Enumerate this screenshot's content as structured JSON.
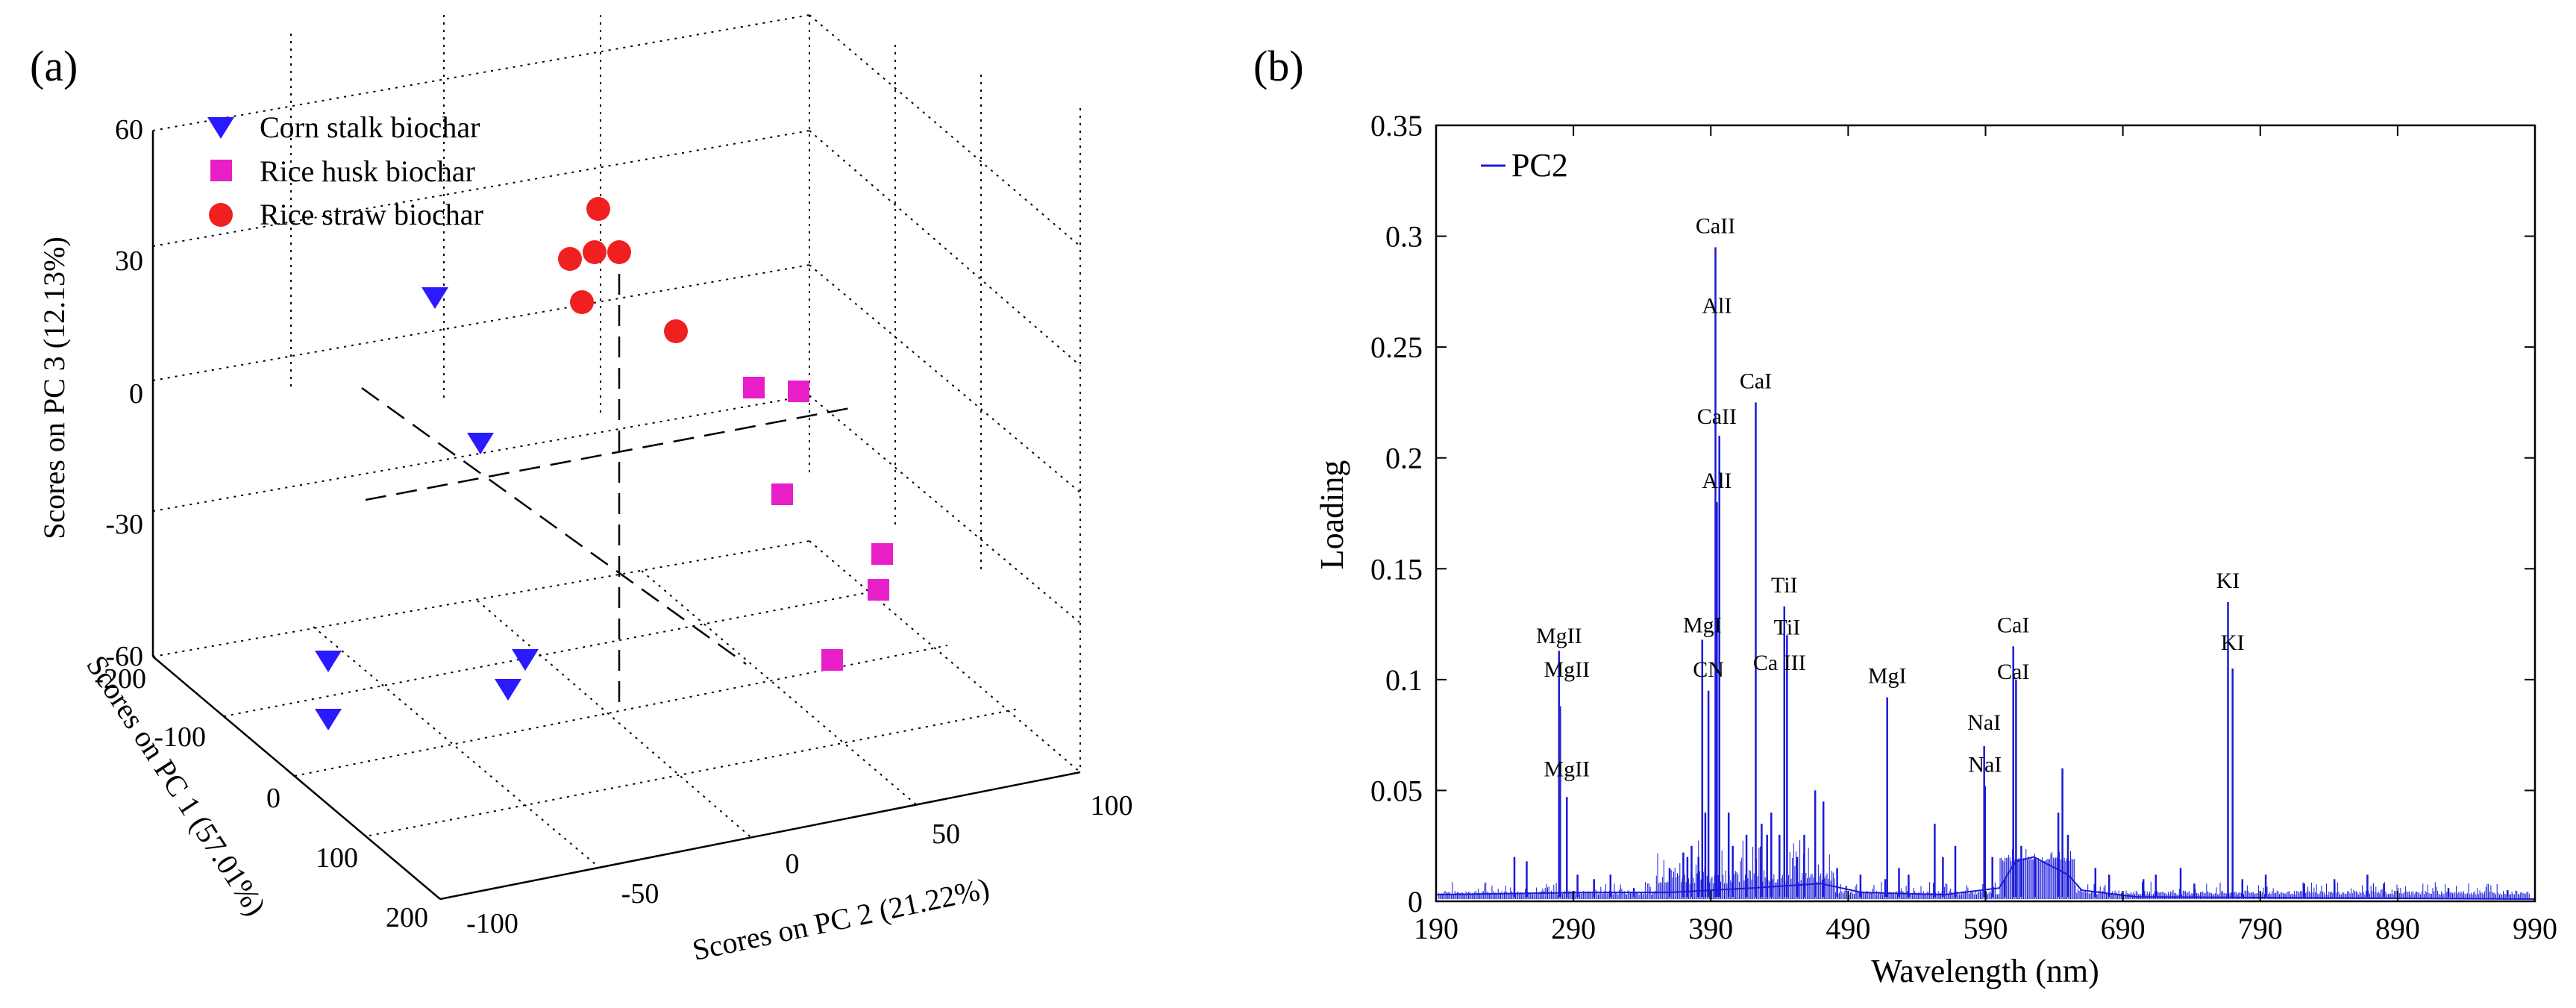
{
  "colors": {
    "axis": "#000000",
    "grid": "#000000",
    "series_line": "#1a1ad9",
    "corn": "#2a1aff",
    "husk": "#e81fc8",
    "straw": "#f02020"
  },
  "panel_a": {
    "label": "(a)",
    "legend": [
      "Corn stalk biochar",
      "Rice husk biochar",
      "Rice straw biochar"
    ],
    "axes": {
      "z_label": "Scores on PC 3 (12.13%)",
      "x_label": "Scores on PC 1 (57.01%)",
      "y_label": "Scores on PC 2 (21.22%)"
    }
  },
  "panel_b": {
    "label": "(b)",
    "legend": "PC2",
    "ylabel": "Loading",
    "xlabel": "Wavelength (nm)"
  },
  "chart_data": [
    {
      "type": "scatter",
      "title": "(a)",
      "dimensions": 3,
      "xlabel": "Scores on PC 1 (57.01%)",
      "ylabel": "Scores on PC 2 (21.22%)",
      "zlabel": "Scores on PC 3 (12.13%)",
      "xlim": [
        -200,
        200
      ],
      "ylim": [
        -100,
        100
      ],
      "zlim": [
        -60,
        60
      ],
      "x_ticks": [
        "-200",
        "-100",
        "0",
        "100",
        "200"
      ],
      "y_ticks": [
        "-100",
        "-50",
        "0",
        "50",
        "100"
      ],
      "z_ticks": [
        "-60",
        "-30",
        "0",
        "30",
        "60"
      ],
      "grid": true,
      "legend_position": "top-left",
      "series": [
        {
          "name": "Corn stalk biochar",
          "marker": "triangle-down",
          "color": "#2a1aff",
          "points": [
            {
              "pc1": -180,
              "pc2": -70,
              "pc3": 45
            },
            {
              "pc1": -100,
              "pc2": -30,
              "pc3": 5
            },
            {
              "pc1": 120,
              "pc2": -95,
              "pc3": 8
            },
            {
              "pc1": 170,
              "pc2": -90,
              "pc3": -8
            },
            {
              "pc1": 60,
              "pc2": -40,
              "pc3": 10
            },
            {
              "pc1": 90,
              "pc2": -45,
              "pc3": 2
            }
          ]
        },
        {
          "name": "Rice husk biochar",
          "marker": "square",
          "color": "#e81fc8",
          "points": [
            {
              "pc1": -20,
              "pc2": 30,
              "pc3": 30
            },
            {
              "pc1": 0,
              "pc2": 50,
              "pc3": 20
            },
            {
              "pc1": 30,
              "pc2": 40,
              "pc3": 0
            },
            {
              "pc1": 60,
              "pc2": 80,
              "pc3": -10
            },
            {
              "pc1": 80,
              "pc2": 70,
              "pc3": -20
            },
            {
              "pc1": 140,
              "pc2": 60,
              "pc3": -25
            }
          ]
        },
        {
          "name": "Rice straw biochar",
          "marker": "circle",
          "color": "#f02020",
          "points": [
            {
              "pc1": -120,
              "pc2": 10,
              "pc3": 50
            },
            {
              "pc1": -110,
              "pc2": 20,
              "pc3": 55
            },
            {
              "pc1": -130,
              "pc2": 30,
              "pc3": 65
            },
            {
              "pc1": -100,
              "pc2": 40,
              "pc3": 55
            },
            {
              "pc1": -90,
              "pc2": 10,
              "pc3": 42
            },
            {
              "pc1": -60,
              "pc2": 20,
              "pc3": 36
            }
          ]
        }
      ]
    },
    {
      "type": "line",
      "title": "(b)",
      "xlabel": "Wavelength (nm)",
      "ylabel": "Loading",
      "xlim": [
        190,
        990
      ],
      "ylim": [
        0,
        0.35
      ],
      "x_ticks": [
        190,
        290,
        390,
        490,
        590,
        690,
        790,
        890,
        990
      ],
      "y_ticks": [
        0,
        0.05,
        0.1,
        0.15,
        0.2,
        0.25,
        0.3,
        0.35
      ],
      "y_tick_labels": [
        "0",
        "0.05",
        "0.1",
        "0.15",
        "0.2",
        "0.25",
        "0.3",
        "0.35"
      ],
      "grid": false,
      "legend_position": "top-left",
      "series": [
        {
          "name": "PC2",
          "peaks": [
            [
              247,
              0.02
            ],
            [
              256,
              0.018
            ],
            [
              279.5,
              0.113
            ],
            [
              280.3,
              0.088
            ],
            [
              285.2,
              0.047
            ],
            [
              293,
              0.012
            ],
            [
              305,
              0.01
            ],
            [
              317,
              0.012
            ],
            [
              334,
              0.006
            ],
            [
              360,
              0.015
            ],
            [
              370,
              0.022
            ],
            [
              373,
              0.02
            ],
            [
              376,
              0.025
            ],
            [
              381,
              0.02
            ],
            [
              383.8,
              0.118
            ],
            [
              386,
              0.04
            ],
            [
              388.3,
              0.095
            ],
            [
              393.4,
              0.295
            ],
            [
              394.4,
              0.18
            ],
            [
              396.2,
              0.21
            ],
            [
              403,
              0.04
            ],
            [
              406,
              0.025
            ],
            [
              416,
              0.03
            ],
            [
              422.7,
              0.225
            ],
            [
              427,
              0.035
            ],
            [
              431,
              0.03
            ],
            [
              434,
              0.04
            ],
            [
              440,
              0.03
            ],
            [
              443.5,
              0.133
            ],
            [
              445.5,
              0.12
            ],
            [
              453,
              0.02
            ],
            [
              458,
              0.03
            ],
            [
              466,
              0.05
            ],
            [
              472,
              0.045
            ],
            [
              482,
              0.015
            ],
            [
              499,
              0.012
            ],
            [
              517,
              0.01
            ],
            [
              518.4,
              0.092
            ],
            [
              527,
              0.015
            ],
            [
              534,
              0.012
            ],
            [
              553,
              0.035
            ],
            [
              559,
              0.02
            ],
            [
              568,
              0.025
            ],
            [
              589,
              0.07
            ],
            [
              589.6,
              0.052
            ],
            [
              595,
              0.02
            ],
            [
              604,
              0.01
            ],
            [
              610.2,
              0.115
            ],
            [
              612.2,
              0.1
            ],
            [
              616,
              0.025
            ],
            [
              626,
              0.02
            ],
            [
              643,
              0.04
            ],
            [
              646,
              0.06
            ],
            [
              650,
              0.03
            ],
            [
              670,
              0.015
            ],
            [
              680,
              0.012
            ],
            [
              705,
              0.01
            ],
            [
              714,
              0.012
            ],
            [
              732,
              0.015
            ],
            [
              742,
              0.008
            ],
            [
              766.5,
              0.135
            ],
            [
              769.9,
              0.105
            ],
            [
              777,
              0.01
            ],
            [
              794,
              0.012
            ],
            [
              822,
              0.008
            ],
            [
              844,
              0.01
            ],
            [
              868,
              0.012
            ],
            [
              880,
              0.008
            ],
            [
              927,
              0.006
            ],
            [
              970,
              0.005
            ]
          ]
        }
      ],
      "baseline_segments": [
        [
          190,
          0.003
        ],
        [
          300,
          0.004
        ],
        [
          360,
          0.004
        ],
        [
          420,
          0.006
        ],
        [
          470,
          0.008
        ],
        [
          500,
          0.004
        ],
        [
          560,
          0.003
        ],
        [
          600,
          0.006
        ],
        [
          612,
          0.018
        ],
        [
          625,
          0.02
        ],
        [
          650,
          0.012
        ],
        [
          660,
          0.005
        ],
        [
          700,
          0.002
        ],
        [
          990,
          0.001
        ]
      ],
      "annotations": [
        {
          "text": "MgII",
          "x": 279.5,
          "y": 0.113
        },
        {
          "text": "MgII",
          "x": 285.2,
          "y": 0.098
        },
        {
          "text": "MgII",
          "x": 285.2,
          "y": 0.053
        },
        {
          "text": "MgI",
          "x": 383.8,
          "y": 0.118
        },
        {
          "text": "CN",
          "x": 388.3,
          "y": 0.098
        },
        {
          "text": "CaII",
          "x": 393.4,
          "y": 0.298
        },
        {
          "text": "AlI",
          "x": 394.4,
          "y": 0.262
        },
        {
          "text": "CaII",
          "x": 394.4,
          "y": 0.212
        },
        {
          "text": "AlI",
          "x": 394.4,
          "y": 0.183
        },
        {
          "text": "CaI",
          "x": 422.7,
          "y": 0.228
        },
        {
          "text": "TiI",
          "x": 443.5,
          "y": 0.136
        },
        {
          "text": "TiI",
          "x": 445.5,
          "y": 0.117
        },
        {
          "text": "Ca III",
          "x": 440,
          "y": 0.101
        },
        {
          "text": "MgI",
          "x": 518.4,
          "y": 0.095
        },
        {
          "text": "NaI",
          "x": 589,
          "y": 0.074
        },
        {
          "text": "NaI",
          "x": 589.6,
          "y": 0.055
        },
        {
          "text": "CaI",
          "x": 610.2,
          "y": 0.118
        },
        {
          "text": "CaI",
          "x": 610.2,
          "y": 0.097
        },
        {
          "text": "KI",
          "x": 766.5,
          "y": 0.138
        },
        {
          "text": "KI",
          "x": 769.9,
          "y": 0.11
        }
      ]
    }
  ]
}
